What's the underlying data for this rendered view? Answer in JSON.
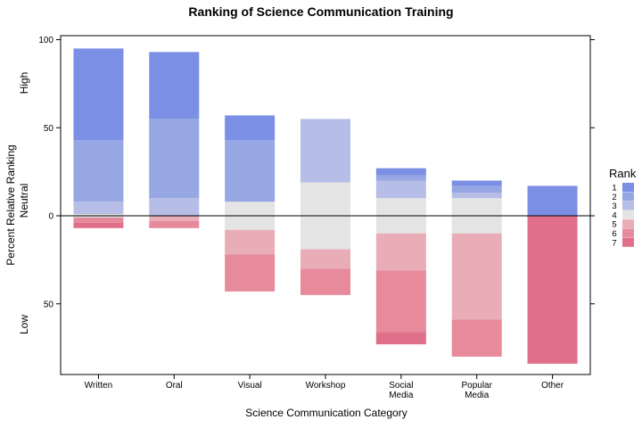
{
  "chart_data": {
    "type": "bar",
    "stacked": "diverging",
    "title": "Ranking of Science Communication Training",
    "xlabel": "Science Communication Category",
    "ylabel": "Percent Relative Ranking",
    "y_side_labels": {
      "high": "High",
      "neutral": "Neutral",
      "low": "Low"
    },
    "ylim": [
      -85,
      100
    ],
    "y_ticks": [
      {
        "value": 100,
        "label": "100"
      },
      {
        "value": 50,
        "label": "50"
      },
      {
        "value": 0,
        "label": "0"
      },
      {
        "value": -50,
        "label": "50"
      }
    ],
    "categories": [
      "Written",
      "Oral",
      "Visual",
      "Workshop",
      "Social Media",
      "Popular Media",
      "Other"
    ],
    "category_labels": [
      [
        "Written"
      ],
      [
        "Oral"
      ],
      [
        "Visual"
      ],
      [
        "Workshop"
      ],
      [
        "Social",
        "Media"
      ],
      [
        "Popular",
        "Media"
      ],
      [
        "Other"
      ]
    ],
    "legend": {
      "title": "Rank",
      "position": "right",
      "entries": [
        "1",
        "2",
        "3",
        "4",
        "5",
        "6",
        "7"
      ]
    },
    "series": [
      {
        "name": "1",
        "color": "#7b8fe4",
        "values": [
          52,
          38,
          14,
          0,
          4,
          3,
          17
        ]
      },
      {
        "name": "2",
        "color": "#97a7e4",
        "values": [
          35,
          45,
          35,
          0,
          3,
          4,
          0
        ]
      },
      {
        "name": "3",
        "color": "#b6bde6",
        "values": [
          7,
          10,
          0,
          36,
          10,
          3,
          0
        ]
      },
      {
        "name": "4",
        "color": "#e4e4e4",
        "values": [
          2,
          0,
          16,
          38,
          20,
          20,
          0
        ]
      },
      {
        "name": "5",
        "color": "#e8adb7",
        "values": [
          0,
          3,
          14,
          11,
          21,
          49,
          0
        ]
      },
      {
        "name": "6",
        "color": "#e68a9c",
        "values": [
          3,
          4,
          21,
          15,
          35,
          21,
          0
        ]
      },
      {
        "name": "7",
        "color": "#e07089",
        "values": [
          3,
          0,
          0,
          0,
          7,
          0,
          84
        ]
      }
    ],
    "grid": false
  }
}
